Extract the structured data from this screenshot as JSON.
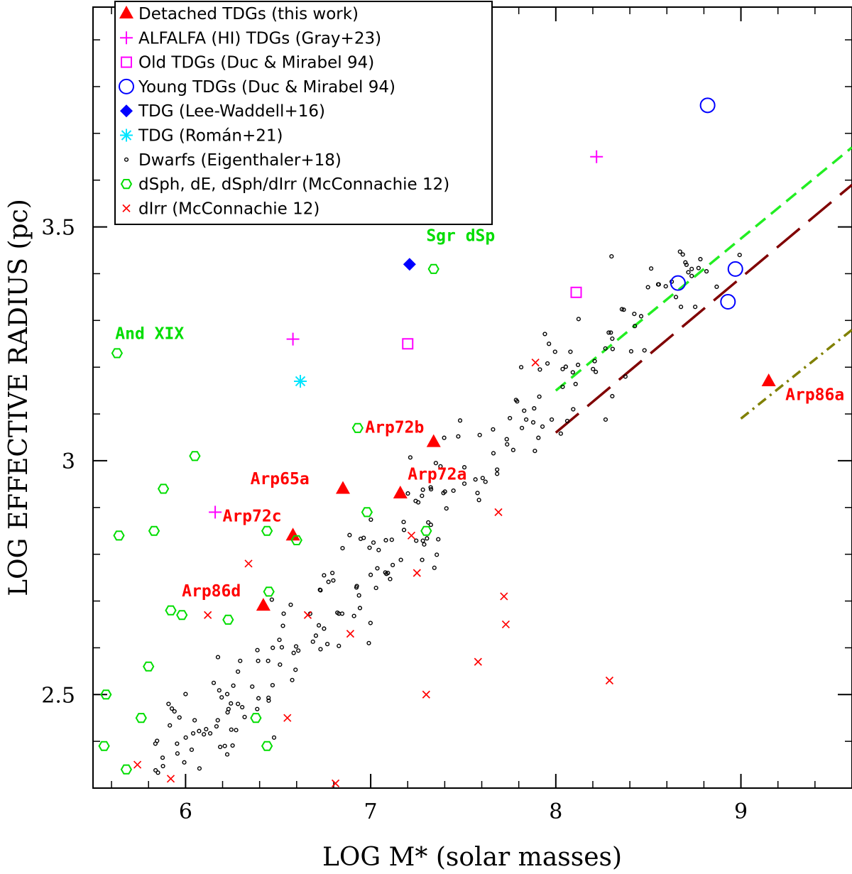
{
  "chart_data": {
    "type": "scatter",
    "xlabel": "LOG M* (solar masses)",
    "ylabel": "LOG EFFECTIVE RADIUS (pc)",
    "xlim": [
      5.5,
      9.6
    ],
    "ylim": [
      2.3,
      3.97
    ],
    "xticks": [
      6,
      7,
      8,
      9
    ],
    "xtick_labels": [
      "6",
      "7",
      "8",
      "9"
    ],
    "yticks": [
      2.5,
      3.0,
      3.5
    ],
    "ytick_labels": [
      "2.5",
      "3",
      "3.5"
    ],
    "legend_position": "top-left",
    "colors": {
      "red": "#ff0000",
      "magenta": "#ff00ff",
      "blue": "#0000ff",
      "cyan": "#00e5ff",
      "black": "#000000",
      "green": "#00dd00",
      "dark_red": "#800000",
      "olive": "#808000",
      "dashed_green": "#22ee22"
    },
    "series": [
      {
        "name": "Detached TDGs (this work)",
        "marker": "triangle",
        "color": "#ff0000",
        "points": [
          {
            "x": 6.42,
            "y": 2.69
          },
          {
            "x": 6.58,
            "y": 2.84
          },
          {
            "x": 6.85,
            "y": 2.94
          },
          {
            "x": 7.16,
            "y": 2.93
          },
          {
            "x": 7.34,
            "y": 3.04
          },
          {
            "x": 9.15,
            "y": 3.17
          }
        ]
      },
      {
        "name": "ALFALFA (HI) TDGs (Gray+23)",
        "marker": "plus",
        "color": "#ff00ff",
        "points": [
          {
            "x": 6.16,
            "y": 2.89
          },
          {
            "x": 6.58,
            "y": 3.26
          },
          {
            "x": 8.22,
            "y": 3.65
          }
        ]
      },
      {
        "name": "Old TDGs (Duc & Mirabel 94)",
        "marker": "square",
        "color": "#ff00ff",
        "points": [
          {
            "x": 7.2,
            "y": 3.25
          },
          {
            "x": 8.11,
            "y": 3.36
          }
        ]
      },
      {
        "name": "Young TDGs (Duc & Mirabel 94)",
        "marker": "circle",
        "color": "#0000ff",
        "points": [
          {
            "x": 8.82,
            "y": 3.76
          },
          {
            "x": 8.66,
            "y": 3.38
          },
          {
            "x": 8.97,
            "y": 3.41
          },
          {
            "x": 8.93,
            "y": 3.34
          }
        ]
      },
      {
        "name": "TDG (Lee-Waddell+16)",
        "marker": "diamond",
        "color": "#0000ff",
        "points": [
          {
            "x": 7.21,
            "y": 3.42
          }
        ]
      },
      {
        "name": "TDG (Román+21)",
        "marker": "asterisk",
        "color": "#00e5ff",
        "points": [
          {
            "x": 6.62,
            "y": 3.17
          }
        ]
      },
      {
        "name": "Dwarfs (Eigenthaler+18)",
        "marker": "small-circle",
        "color": "#000000",
        "points": []
      },
      {
        "name": "dSph, dE, dSph/dIrr (McConnachie 12)",
        "marker": "hexagon",
        "color": "#00dd00",
        "points": [
          {
            "x": 5.63,
            "y": 3.23
          },
          {
            "x": 7.34,
            "y": 3.41
          },
          {
            "x": 6.05,
            "y": 3.01
          },
          {
            "x": 5.88,
            "y": 2.94
          },
          {
            "x": 5.64,
            "y": 2.84
          },
          {
            "x": 5.83,
            "y": 2.85
          },
          {
            "x": 6.93,
            "y": 3.07
          },
          {
            "x": 6.98,
            "y": 2.89
          },
          {
            "x": 7.3,
            "y": 2.85
          },
          {
            "x": 6.44,
            "y": 2.85
          },
          {
            "x": 6.6,
            "y": 2.83
          },
          {
            "x": 6.45,
            "y": 2.72
          },
          {
            "x": 5.92,
            "y": 2.68
          },
          {
            "x": 5.98,
            "y": 2.67
          },
          {
            "x": 6.23,
            "y": 2.66
          },
          {
            "x": 5.8,
            "y": 2.56
          },
          {
            "x": 5.57,
            "y": 2.5
          },
          {
            "x": 5.76,
            "y": 2.45
          },
          {
            "x": 6.38,
            "y": 2.45
          },
          {
            "x": 5.56,
            "y": 2.39
          },
          {
            "x": 6.44,
            "y": 2.39
          },
          {
            "x": 5.68,
            "y": 2.34
          }
        ]
      },
      {
        "name": "dIrr (McConnachie 12)",
        "marker": "x",
        "color": "#ff0000",
        "points": [
          {
            "x": 7.89,
            "y": 3.21
          },
          {
            "x": 7.69,
            "y": 2.89
          },
          {
            "x": 7.22,
            "y": 2.84
          },
          {
            "x": 6.34,
            "y": 2.78
          },
          {
            "x": 7.25,
            "y": 2.76
          },
          {
            "x": 7.72,
            "y": 2.71
          },
          {
            "x": 6.12,
            "y": 2.67
          },
          {
            "x": 6.66,
            "y": 2.67
          },
          {
            "x": 7.73,
            "y": 2.65
          },
          {
            "x": 6.89,
            "y": 2.63
          },
          {
            "x": 7.58,
            "y": 2.57
          },
          {
            "x": 8.29,
            "y": 2.53
          },
          {
            "x": 7.3,
            "y": 2.5
          },
          {
            "x": 6.55,
            "y": 2.45
          },
          {
            "x": 5.74,
            "y": 2.35
          },
          {
            "x": 5.92,
            "y": 2.32
          },
          {
            "x": 6.81,
            "y": 2.31
          }
        ]
      }
    ],
    "lines": [
      {
        "name": "green-dashed",
        "color": "#22ee22",
        "style": "dashed",
        "x": [
          8.0,
          9.6
        ],
        "y": [
          3.15,
          3.67
        ]
      },
      {
        "name": "dark-red-longdash",
        "color": "#800000",
        "style": "longdash",
        "x": [
          8.0,
          9.6
        ],
        "y": [
          3.06,
          3.59
        ]
      },
      {
        "name": "olive-dashdot",
        "color": "#808000",
        "style": "dashdot",
        "x": [
          9.0,
          9.6
        ],
        "y": [
          3.09,
          3.28
        ]
      }
    ],
    "annotations": [
      {
        "text": "Sgr dSp",
        "color": "#00dd00",
        "x": 7.3,
        "y": 3.47
      },
      {
        "text": "And XIX",
        "color": "#00dd00",
        "x": 5.62,
        "y": 3.26
      },
      {
        "text": "Arp72b",
        "color": "#ff0000",
        "x": 6.97,
        "y": 3.06
      },
      {
        "text": "Arp65a",
        "color": "#ff0000",
        "x": 6.35,
        "y": 2.95
      },
      {
        "text": "Arp72a",
        "color": "#ff0000",
        "x": 7.2,
        "y": 2.96
      },
      {
        "text": "Arp72c",
        "color": "#ff0000",
        "x": 6.2,
        "y": 2.87
      },
      {
        "text": "Arp86d",
        "color": "#ff0000",
        "x": 5.98,
        "y": 2.71
      },
      {
        "text": "Arp86a",
        "color": "#ff0000",
        "x": 9.24,
        "y": 3.13
      }
    ]
  }
}
